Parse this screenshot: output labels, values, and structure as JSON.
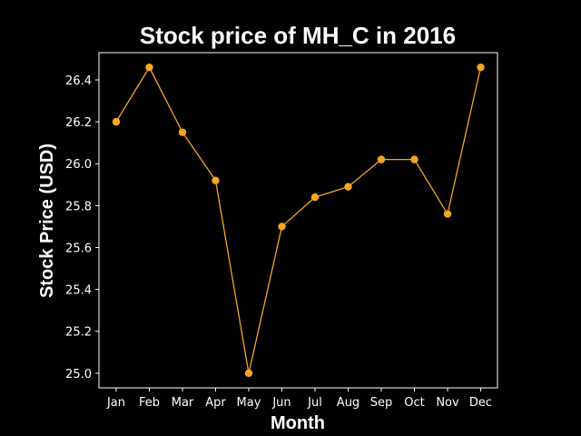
{
  "chart_data": {
    "type": "line",
    "title": "Stock price of MH_C in 2016",
    "xlabel": "Month",
    "ylabel": "Stock Price (USD)",
    "categories": [
      "Jan",
      "Feb",
      "Mar",
      "Apr",
      "May",
      "Jun",
      "Jul",
      "Aug",
      "Sep",
      "Oct",
      "Nov",
      "Dec"
    ],
    "series": [
      {
        "values": [
          26.2,
          26.46,
          26.15,
          25.92,
          25.0,
          25.7,
          25.84,
          25.89,
          26.02,
          26.02,
          25.76,
          26.46
        ]
      }
    ],
    "ylim": [
      24.93,
      26.53
    ],
    "yticks": [
      "25.0",
      "25.2",
      "25.4",
      "25.6",
      "25.8",
      "26.0",
      "26.2",
      "26.4"
    ],
    "grid": false,
    "colors": {
      "background": "#000000",
      "line": "#f5a623",
      "axes": "#ffffff"
    }
  }
}
